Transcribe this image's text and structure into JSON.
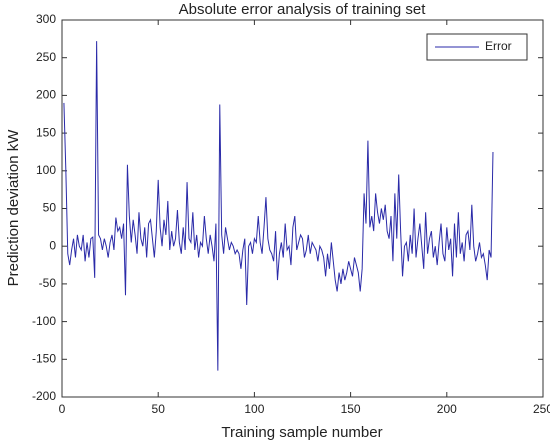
{
  "chart_data": {
    "type": "line",
    "title": "Absolute error analysis of training set",
    "xlabel": "Training sample number",
    "ylabel": "Prediction deviation kW",
    "x": [
      1,
      2,
      3,
      4,
      5,
      6,
      7,
      8,
      9,
      10,
      11,
      12,
      13,
      14,
      15,
      16,
      17,
      18,
      19,
      20,
      21,
      22,
      23,
      24,
      25,
      26,
      27,
      28,
      29,
      30,
      31,
      32,
      33,
      34,
      35,
      36,
      37,
      38,
      39,
      40,
      41,
      42,
      43,
      44,
      45,
      46,
      47,
      48,
      49,
      50,
      51,
      52,
      53,
      54,
      55,
      56,
      57,
      58,
      59,
      60,
      61,
      62,
      63,
      64,
      65,
      66,
      67,
      68,
      69,
      70,
      71,
      72,
      73,
      74,
      75,
      76,
      77,
      78,
      79,
      80,
      81,
      82,
      83,
      84,
      85,
      86,
      87,
      88,
      89,
      90,
      91,
      92,
      93,
      94,
      95,
      96,
      97,
      98,
      99,
      100,
      101,
      102,
      103,
      104,
      105,
      106,
      107,
      108,
      109,
      110,
      111,
      112,
      113,
      114,
      115,
      116,
      117,
      118,
      119,
      120,
      121,
      122,
      123,
      124,
      125,
      126,
      127,
      128,
      129,
      130,
      131,
      132,
      133,
      134,
      135,
      136,
      137,
      138,
      139,
      140,
      141,
      142,
      143,
      144,
      145,
      146,
      147,
      148,
      149,
      150,
      151,
      152,
      153,
      154,
      155,
      156,
      157,
      158,
      159,
      160,
      161,
      162,
      163,
      164,
      165,
      166,
      167,
      168,
      169,
      170,
      171,
      172,
      173,
      174,
      175,
      176,
      177,
      178,
      179,
      180,
      181,
      182,
      183,
      184,
      185,
      186,
      187,
      188,
      189,
      190,
      191,
      192,
      193,
      194,
      195,
      196,
      197,
      198,
      199,
      200,
      201,
      202,
      203,
      204,
      205,
      206,
      207,
      208,
      209,
      210,
      211,
      212,
      213,
      214,
      215,
      216,
      217,
      218,
      219,
      220,
      221,
      222,
      223,
      224
    ],
    "series": [
      {
        "name": "Error",
        "color": "#2a2aa8",
        "values": [
          190,
          100,
          -10,
          -25,
          -5,
          10,
          -15,
          15,
          0,
          -5,
          15,
          -20,
          5,
          -15,
          10,
          12,
          -42,
          272,
          15,
          10,
          -5,
          10,
          0,
          -15,
          5,
          15,
          -5,
          38,
          20,
          25,
          10,
          30,
          -65,
          108,
          40,
          5,
          35,
          15,
          -10,
          45,
          10,
          0,
          25,
          -15,
          30,
          35,
          10,
          -15,
          20,
          88,
          25,
          0,
          35,
          15,
          60,
          -5,
          20,
          0,
          10,
          48,
          5,
          -10,
          25,
          -5,
          85,
          10,
          5,
          45,
          -5,
          15,
          -15,
          5,
          0,
          40,
          10,
          -10,
          15,
          0,
          -20,
          30,
          -165,
          188,
          15,
          -10,
          25,
          10,
          -5,
          5,
          0,
          -10,
          -5,
          -10,
          -30,
          -5,
          10,
          -78,
          0,
          5,
          -10,
          10,
          5,
          40,
          5,
          -10,
          25,
          65,
          10,
          -5,
          -10,
          -20,
          20,
          -45,
          -10,
          5,
          -15,
          30,
          -5,
          0,
          -25,
          25,
          40,
          -5,
          5,
          15,
          10,
          -15,
          -5,
          15,
          -10,
          5,
          0,
          -5,
          -20,
          0,
          -5,
          -15,
          -40,
          -10,
          -30,
          5,
          -20,
          -45,
          -60,
          -35,
          -50,
          -30,
          -45,
          -35,
          -20,
          -30,
          -40,
          -15,
          -25,
          -35,
          -60,
          -30,
          70,
          30,
          140,
          25,
          40,
          20,
          70,
          45,
          30,
          50,
          35,
          55,
          20,
          10,
          40,
          -20,
          70,
          10,
          95,
          20,
          -40,
          0,
          5,
          -20,
          15,
          -10,
          50,
          -15,
          10,
          30,
          0,
          -30,
          45,
          -10,
          10,
          20,
          -15,
          0,
          -25,
          5,
          30,
          -10,
          -20,
          25,
          -5,
          10,
          -40,
          30,
          -15,
          45,
          -10,
          5,
          -20,
          15,
          20,
          -5,
          55,
          0,
          -20,
          -10,
          5,
          -15,
          -10,
          -25,
          -45,
          -5,
          -15,
          125
        ]
      }
    ],
    "xlim": [
      0,
      250
    ],
    "xticks": [
      0,
      50,
      100,
      150,
      200,
      250
    ],
    "ylim": [
      -200,
      300
    ],
    "yticks": [
      -200,
      -150,
      -100,
      -50,
      0,
      50,
      100,
      150,
      200,
      250,
      300
    ],
    "grid": false,
    "legend": "northeast"
  }
}
